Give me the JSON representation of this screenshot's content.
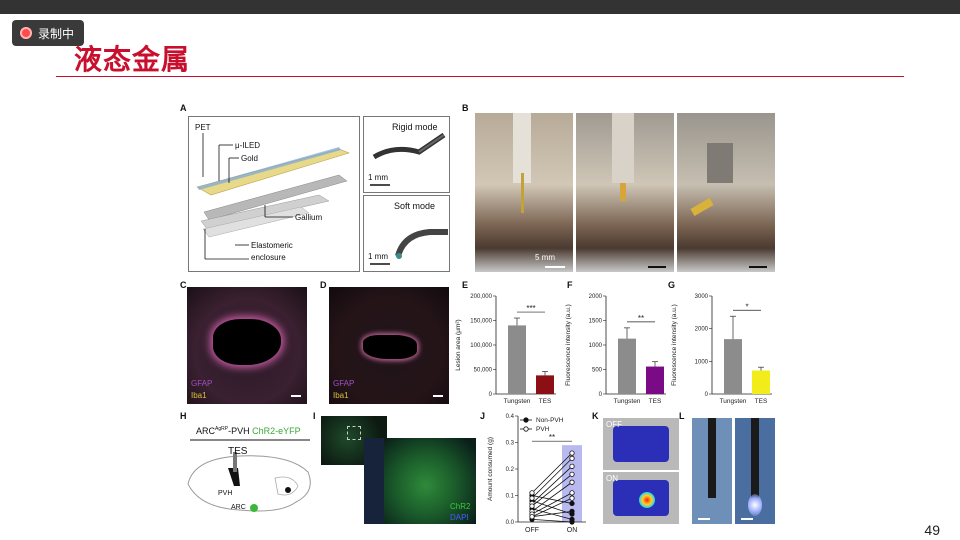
{
  "recorder": {
    "label": "录制中"
  },
  "slide": {
    "title": "液态金属",
    "page_number": "49"
  },
  "panel_a": {
    "letter": "A",
    "labels": {
      "pet": "PET",
      "uiled": "μ-ILED",
      "gold": "Gold",
      "gallium": "Gallium",
      "enclosure1": "Elastomeric",
      "enclosure2": "enclosure"
    },
    "rigid": {
      "title": "Rigid mode",
      "scale": "1 mm"
    },
    "soft": {
      "title": "Soft mode",
      "scale": "1 mm"
    }
  },
  "panel_b": {
    "letter": "B",
    "scale": "5 mm"
  },
  "panel_c": {
    "letter": "C",
    "stain1": "GFAP",
    "stain2": "Iba1"
  },
  "panel_d": {
    "letter": "D",
    "stain1": "GFAP",
    "stain2": "Iba1"
  },
  "panel_h": {
    "letter": "H",
    "header_a": "ARC",
    "header_sup": "AgRP",
    "header_b": "-PVH",
    "header_c": "ChR2-eYFP",
    "tes": "TES",
    "pvh": "PVH",
    "arc": "ARC"
  },
  "panel_i": {
    "letter": "I",
    "stain1": "ChR2",
    "stain2": "DAPI"
  },
  "panel_k": {
    "letter": "K",
    "off": "OFF",
    "on": "ON"
  },
  "panel_l": {
    "letter": "L"
  },
  "chart_data": [
    {
      "letter": "E",
      "type": "bar",
      "categories": [
        "Tungsten",
        "TES"
      ],
      "values": [
        140000,
        38000
      ],
      "errors": [
        15000,
        8000
      ],
      "colors": [
        "#8c8c8c",
        "#8b0f14"
      ],
      "ylabel": "Lesion area (μm²)",
      "ylim": [
        0,
        200000
      ],
      "yticks": [
        0,
        50000,
        100000,
        150000,
        200000
      ],
      "ytick_labels": [
        "0",
        "50,000",
        "100,000",
        "150,000",
        "200,000"
      ],
      "significance": "***"
    },
    {
      "letter": "F",
      "type": "bar",
      "categories": [
        "Tungsten",
        "TES"
      ],
      "values": [
        1130,
        560
      ],
      "errors": [
        220,
        100
      ],
      "colors": [
        "#8c8c8c",
        "#7a0a86"
      ],
      "ylabel": "Fluorescence intensity (a.u.)",
      "ylim": [
        0,
        2000
      ],
      "yticks": [
        0,
        500,
        1000,
        1500,
        2000
      ],
      "ytick_labels": [
        "0",
        "500",
        "1000",
        "1500",
        "2000"
      ],
      "significance": "**"
    },
    {
      "letter": "G",
      "type": "bar",
      "categories": [
        "Tungsten",
        "TES"
      ],
      "values": [
        1680,
        720
      ],
      "errors": [
        700,
        100
      ],
      "colors": [
        "#8c8c8c",
        "#f2ec1a"
      ],
      "ylabel": "Fluorescence intensity (a.u.)",
      "ylim": [
        0,
        3000
      ],
      "yticks": [
        0,
        1000,
        2000,
        3000
      ],
      "ytick_labels": [
        "0",
        "1000",
        "2000",
        "3000"
      ],
      "significance": "*"
    },
    {
      "letter": "J",
      "type": "line",
      "categories": [
        "OFF",
        "ON"
      ],
      "ylabel": "Amount consumed (g)",
      "ylim": [
        0,
        0.4
      ],
      "yticks": [
        0,
        0.1,
        0.2,
        0.3,
        0.4
      ],
      "ytick_labels": [
        "0.0",
        "0.1",
        "0.2",
        "0.3",
        "0.4"
      ],
      "legend": [
        "Non-PVH",
        "PVH"
      ],
      "highlight_color": "#b7b9ef",
      "significance": "**",
      "series": [
        {
          "name": "Non-PVH",
          "values": [
            0.1,
            0.07
          ]
        },
        {
          "name": "Non-PVH",
          "values": [
            0.08,
            0.03
          ]
        },
        {
          "name": "Non-PVH",
          "values": [
            0.05,
            0.01
          ]
        },
        {
          "name": "Non-PVH",
          "values": [
            0.02,
            0.04
          ]
        },
        {
          "name": "Non-PVH",
          "values": [
            0.01,
            0.0
          ]
        },
        {
          "name": "PVH",
          "values": [
            0.11,
            0.26
          ]
        },
        {
          "name": "PVH",
          "values": [
            0.09,
            0.24
          ]
        },
        {
          "name": "PVH",
          "values": [
            0.07,
            0.21
          ]
        },
        {
          "name": "PVH",
          "values": [
            0.06,
            0.18
          ]
        },
        {
          "name": "PVH",
          "values": [
            0.04,
            0.15
          ]
        },
        {
          "name": "PVH",
          "values": [
            0.03,
            0.11
          ]
        },
        {
          "name": "PVH",
          "values": [
            0.02,
            0.09
          ]
        }
      ]
    }
  ]
}
